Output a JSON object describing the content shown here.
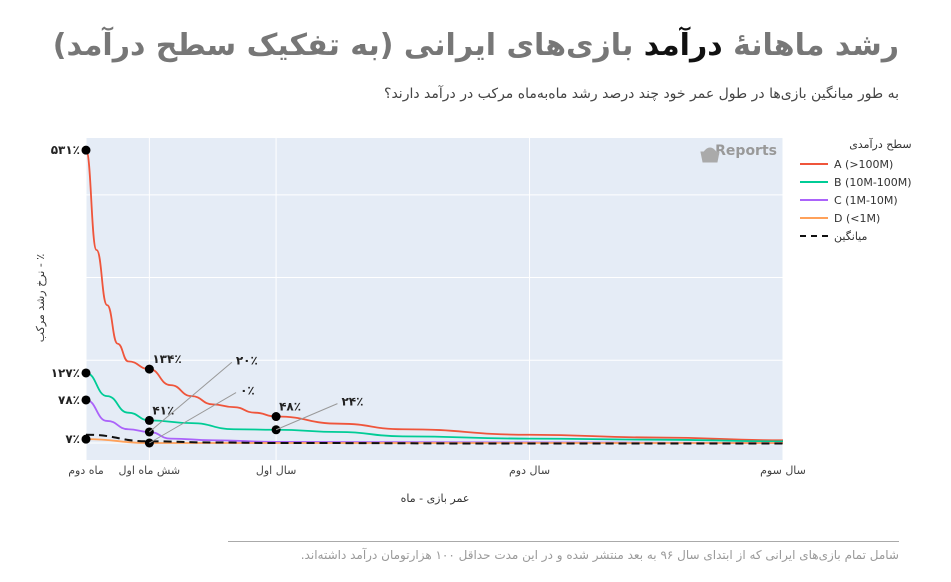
{
  "title_plain_1": "رشد ماهانهٔ ",
  "title_bold": "درآمد",
  "title_plain_2": " بازی‌های ایرانی (به تفکیک سطح درآمد)",
  "subtitle": "به طور میانگین بازی‌ها در طول عمر خود چند درصد رشد ماه‌به‌ماه مرکب در درآمد دارند؟",
  "footnote": "شامل تمام بازی‌های ایرانی که از ابتدای سال ۹۶ به بعد منتشر شده و در این مدت حداقل ۱۰۰ هزارتومان درآمد داشته‌اند.",
  "watermark": "Reports",
  "chart_data": {
    "type": "line",
    "xlabel": "عمر بازی - ماه",
    "ylabel": "٪ - نرخ رشد مرکب",
    "xlim": [
      3,
      36
    ],
    "ylim": [
      -20,
      560
    ],
    "x_ticks": [
      {
        "v": 3,
        "label": "ماه دوم"
      },
      {
        "v": 6,
        "label": "شش ماه اول"
      },
      {
        "v": 12,
        "label": "سال اول"
      },
      {
        "v": 24,
        "label": "سال دوم"
      },
      {
        "v": 36,
        "label": "سال سوم"
      }
    ],
    "legend_title": "سطح درآمدی",
    "legend_position": "right",
    "series": [
      {
        "name": "A (>100M)",
        "color": "#ef553b",
        "dash": false,
        "points": [
          [
            3,
            531
          ],
          [
            3.5,
            350
          ],
          [
            4,
            250
          ],
          [
            4.5,
            180
          ],
          [
            5,
            148
          ],
          [
            6,
            134
          ],
          [
            7,
            105
          ],
          [
            8,
            85
          ],
          [
            9,
            70
          ],
          [
            10,
            65
          ],
          [
            11,
            55
          ],
          [
            12,
            48
          ],
          [
            15,
            35
          ],
          [
            18,
            25
          ],
          [
            24,
            15
          ],
          [
            30,
            10
          ],
          [
            36,
            5
          ]
        ]
      },
      {
        "name": "B (10M-100M)",
        "color": "#00cc96",
        "dash": false,
        "points": [
          [
            3,
            127
          ],
          [
            4,
            85
          ],
          [
            5,
            55
          ],
          [
            6,
            41
          ],
          [
            8,
            36
          ],
          [
            10,
            25
          ],
          [
            12,
            24
          ],
          [
            15,
            20
          ],
          [
            18,
            12
          ],
          [
            24,
            8
          ],
          [
            30,
            6
          ],
          [
            36,
            3
          ]
        ]
      },
      {
        "name": "C (1M-10M)",
        "color": "#ab63fa",
        "dash": false,
        "points": [
          [
            3,
            78
          ],
          [
            4,
            40
          ],
          [
            5,
            25
          ],
          [
            6,
            20
          ],
          [
            7,
            8
          ],
          [
            9,
            5
          ],
          [
            12,
            2
          ],
          [
            24,
            1
          ],
          [
            36,
            0
          ]
        ]
      },
      {
        "name": "D (<1M)",
        "color": "#ffa15a",
        "dash": false,
        "points": [
          [
            3,
            7
          ],
          [
            6,
            0
          ],
          [
            12,
            0
          ],
          [
            36,
            0
          ]
        ]
      },
      {
        "name": "میانگین",
        "color": "#111111",
        "dash": true,
        "points": [
          [
            3,
            15
          ],
          [
            6,
            3
          ],
          [
            9,
            1
          ],
          [
            12,
            0
          ],
          [
            24,
            -1
          ],
          [
            36,
            -1
          ]
        ]
      }
    ],
    "annotations": [
      {
        "x": 3,
        "y": 531,
        "label": "۵۳۱٪",
        "pos": "left"
      },
      {
        "x": 3,
        "y": 127,
        "label": "۱۲۷٪",
        "pos": "left"
      },
      {
        "x": 3,
        "y": 78,
        "label": "۷۸٪",
        "pos": "left"
      },
      {
        "x": 3,
        "y": 7,
        "label": "۷٪",
        "pos": "left"
      },
      {
        "x": 6,
        "y": 134,
        "label": "۱۳۴٪",
        "pos": "above"
      },
      {
        "x": 6,
        "y": 41,
        "label": "۴۱٪",
        "pos": "above"
      },
      {
        "x": 6,
        "y": 20,
        "label": "۲۰٪",
        "pos": "leader",
        "lx": 10,
        "ly": 150
      },
      {
        "x": 6,
        "y": 0,
        "label": "۰٪",
        "pos": "leader",
        "lx": 10.2,
        "ly": 95
      },
      {
        "x": 12,
        "y": 48,
        "label": "۴۸٪",
        "pos": "above"
      },
      {
        "x": 12,
        "y": 24,
        "label": "۲۴٪",
        "pos": "leader",
        "lx": 15,
        "ly": 75
      }
    ]
  }
}
